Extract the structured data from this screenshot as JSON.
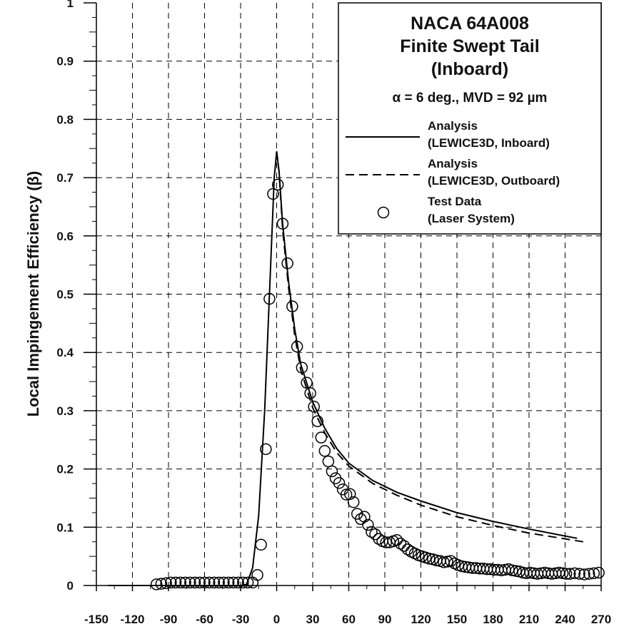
{
  "chart_data": {
    "type": "line",
    "title_lines": [
      "NACA 64A008",
      "Finite Swept Tail",
      "(Inboard)"
    ],
    "subtitle": "α = 6 deg., MVD = 92 µm",
    "xlabel": "",
    "ylabel": "Local Impingement Efficiency (β)",
    "xlim": [
      -150,
      270
    ],
    "ylim": [
      0,
      1
    ],
    "xticks": [
      -150,
      -120,
      -90,
      -60,
      -30,
      0,
      30,
      60,
      90,
      120,
      150,
      180,
      210,
      240,
      270
    ],
    "yticks": [
      0,
      0.1,
      0.2,
      0.3,
      0.4,
      0.5,
      0.6,
      0.7,
      0.8,
      0.9,
      1
    ],
    "ytick_labels": [
      "0",
      "0.1",
      "0.2",
      "0.3",
      "0.4",
      "0.5",
      "0.6",
      "0.7",
      "0.8",
      "0.9",
      "1"
    ],
    "grid": true,
    "legend_position": "top-right",
    "series": [
      {
        "name": "Analysis (LEWICE3D, Inboard)",
        "legend_lines": [
          "Analysis",
          "(LEWICE3D, Inboard)"
        ],
        "style": "solid",
        "color": "#000000",
        "x": [
          -140,
          -100,
          -60,
          -30,
          -25,
          -20,
          -15,
          -10,
          -5,
          -2,
          0,
          2,
          5,
          10,
          15,
          20,
          30,
          40,
          50,
          60,
          80,
          100,
          120,
          150,
          180,
          210,
          240,
          250
        ],
        "y": [
          0,
          0,
          0,
          0,
          0.002,
          0.03,
          0.12,
          0.3,
          0.55,
          0.7,
          0.745,
          0.71,
          0.62,
          0.52,
          0.44,
          0.38,
          0.315,
          0.27,
          0.235,
          0.21,
          0.18,
          0.16,
          0.145,
          0.125,
          0.11,
          0.097,
          0.085,
          0.081
        ]
      },
      {
        "name": "Analysis (LEWICE3D, Outboard)",
        "legend_lines": [
          "Analysis",
          "(LEWICE3D, Outboard)"
        ],
        "style": "dashed",
        "color": "#000000",
        "x": [
          0,
          2,
          5,
          10,
          15,
          20,
          30,
          40,
          50,
          60,
          80,
          100,
          120,
          150,
          180,
          210,
          240,
          255
        ],
        "y": [
          0.745,
          0.71,
          0.61,
          0.51,
          0.43,
          0.37,
          0.305,
          0.262,
          0.228,
          0.205,
          0.175,
          0.155,
          0.138,
          0.118,
          0.103,
          0.09,
          0.08,
          0.075
        ]
      },
      {
        "name": "Test Data (Laser System)",
        "legend_lines": [
          "Test Data",
          "(Laser System)"
        ],
        "style": "markers",
        "color": "#000000",
        "x": [
          -100,
          -96,
          -92,
          -88,
          -84,
          -80,
          -76,
          -72,
          -68,
          -64,
          -60,
          -56,
          -52,
          -48,
          -44,
          -40,
          -36,
          -32,
          -28,
          -24,
          -20,
          -16,
          -13,
          -9,
          -6,
          -3,
          1,
          5,
          9,
          13,
          17,
          21,
          25,
          28,
          31,
          34,
          37,
          40,
          43,
          46,
          49,
          52,
          55,
          58,
          61,
          64,
          67,
          70,
          73,
          76,
          79,
          82,
          85,
          88,
          91,
          94,
          97,
          100,
          103,
          106,
          109,
          112,
          115,
          118,
          121,
          124,
          127,
          130,
          133,
          136,
          139,
          142,
          145,
          148,
          151,
          154,
          157,
          160,
          163,
          166,
          169,
          172,
          175,
          178,
          181,
          184,
          187,
          190,
          193,
          196,
          199,
          202,
          205,
          208,
          211,
          214,
          217,
          220,
          223,
          226,
          229,
          232,
          235,
          238,
          241,
          244,
          248,
          252,
          256,
          260,
          264,
          268
        ],
        "y": [
          0.002,
          0.003,
          0.004,
          0.005,
          0.005,
          0.005,
          0.005,
          0.005,
          0.005,
          0.005,
          0.005,
          0.005,
          0.005,
          0.005,
          0.005,
          0.005,
          0.005,
          0.005,
          0.005,
          0.005,
          0.005,
          0.018,
          0.07,
          0.234,
          0.492,
          0.672,
          0.688,
          0.621,
          0.553,
          0.479,
          0.41,
          0.374,
          0.348,
          0.33,
          0.307,
          0.282,
          0.254,
          0.231,
          0.213,
          0.196,
          0.184,
          0.176,
          0.165,
          0.156,
          0.157,
          0.143,
          0.123,
          0.114,
          0.118,
          0.104,
          0.092,
          0.088,
          0.08,
          0.076,
          0.074,
          0.074,
          0.076,
          0.078,
          0.072,
          0.068,
          0.062,
          0.058,
          0.055,
          0.052,
          0.05,
          0.048,
          0.046,
          0.045,
          0.043,
          0.042,
          0.04,
          0.041,
          0.042,
          0.038,
          0.035,
          0.033,
          0.032,
          0.031,
          0.03,
          0.03,
          0.029,
          0.029,
          0.028,
          0.028,
          0.027,
          0.027,
          0.026,
          0.027,
          0.028,
          0.026,
          0.025,
          0.024,
          0.022,
          0.021,
          0.022,
          0.021,
          0.02,
          0.021,
          0.022,
          0.021,
          0.02,
          0.021,
          0.022,
          0.021,
          0.02,
          0.02,
          0.021,
          0.02,
          0.019,
          0.02,
          0.021,
          0.022
        ]
      }
    ]
  }
}
